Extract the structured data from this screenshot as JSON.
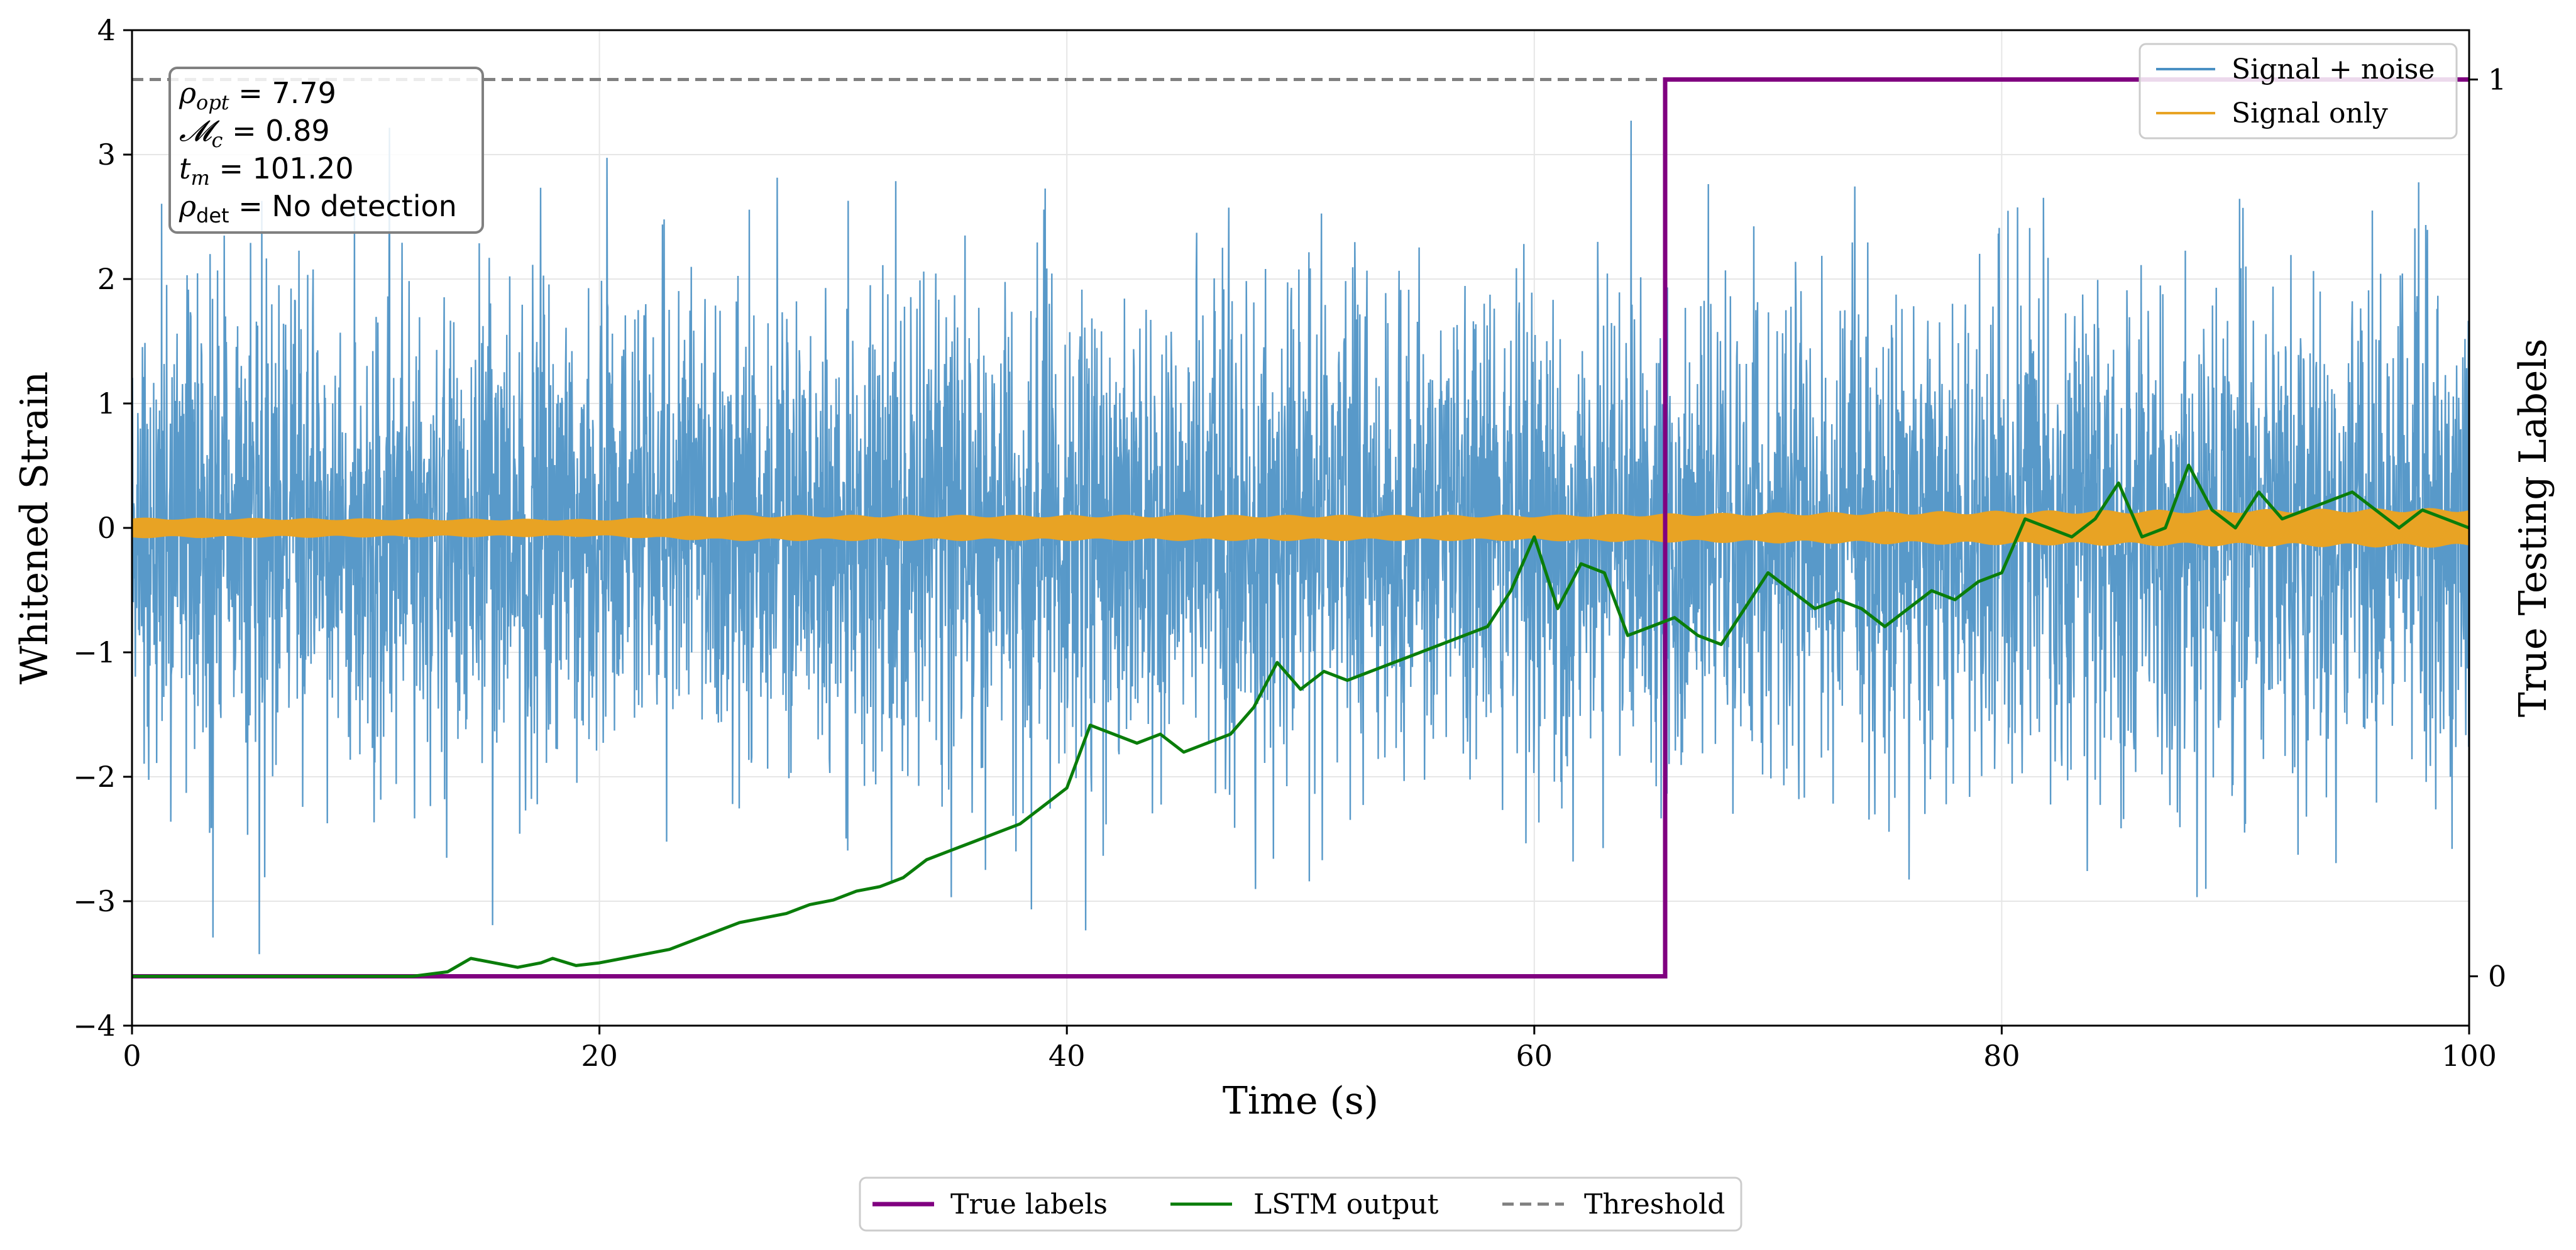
{
  "chart_data": {
    "type": "line",
    "xlabel": "Time (s)",
    "ylabel": "Whitened Strain",
    "y2label": "True Testing Labels",
    "xlim": [
      0,
      100
    ],
    "ylim": [
      -4,
      4
    ],
    "y2lim": [
      -0.055,
      1.055
    ],
    "x_ticks": [
      0,
      20,
      40,
      60,
      80,
      100
    ],
    "y_ticks": [
      -4,
      -3,
      -2,
      -1,
      0,
      1,
      2,
      3,
      4
    ],
    "y2_ticks": [
      0,
      1
    ],
    "grid": true,
    "strain_legend": {
      "position": "top-right",
      "entries": [
        {
          "label": "Signal + noise",
          "color": "#4a90c4"
        },
        {
          "label": "Signal only",
          "color": "#e8a324"
        }
      ]
    },
    "labels_legend": {
      "position": "bottom-center-outside",
      "entries": [
        {
          "label": "True labels",
          "color": "#800080",
          "style": "solid"
        },
        {
          "label": "LSTM output",
          "color": "#0a7d0a",
          "style": "solid"
        },
        {
          "label": "Threshold",
          "color": "#808080",
          "style": "dashed"
        }
      ]
    },
    "info_box": {
      "lines": [
        {
          "sym": "ρ",
          "sub": "opt",
          "rest": " = 7.79"
        },
        {
          "sym": "𝓜",
          "sub": "c",
          "rest": " = 0.89"
        },
        {
          "sym": "t",
          "sub": "m",
          "rest": " = 101.20"
        },
        {
          "sym": "ρ",
          "sub": "det",
          "rest": " = No detection"
        }
      ]
    },
    "series": [
      {
        "name": "Signal + noise",
        "axis": "left",
        "color": "#4a90c4",
        "description": "Gaussian-like whitened noise, typical amplitude about ±2, peaks reaching about ±3.5 over 0–100 s"
      },
      {
        "name": "Signal only",
        "axis": "left",
        "color": "#e8a324",
        "envelope": {
          "x": [
            0,
            20,
            25,
            40,
            60,
            65,
            80,
            100
          ],
          "amplitude": [
            0.07,
            0.06,
            0.09,
            0.09,
            0.09,
            0.1,
            0.12,
            0.14
          ]
        }
      },
      {
        "name": "True labels",
        "axis": "right",
        "color": "#800080",
        "x": [
          0,
          65.6,
          65.6,
          100
        ],
        "y": [
          0,
          0,
          1,
          1
        ]
      },
      {
        "name": "LSTM output",
        "axis": "right",
        "color": "#0a7d0a",
        "x": [
          0,
          12,
          13.5,
          14.5,
          15.5,
          16.5,
          17.5,
          18,
          19,
          20,
          21,
          22,
          23,
          24,
          25,
          26,
          27,
          28,
          29,
          30,
          31,
          32,
          33,
          34,
          35,
          36,
          37,
          38,
          39,
          40,
          41,
          42,
          43,
          44,
          45,
          46,
          47,
          48,
          49,
          50,
          51,
          52,
          53,
          54,
          55,
          56,
          57,
          58,
          59,
          60,
          61,
          62,
          63,
          64,
          65,
          66,
          67,
          68,
          69,
          70,
          71,
          72,
          73,
          74,
          75,
          76,
          77,
          78,
          79,
          80,
          81,
          82,
          83,
          84,
          85,
          86,
          87,
          88,
          89,
          90,
          91,
          92,
          93,
          94,
          95,
          96,
          97,
          98,
          99,
          100
        ],
        "y": [
          0,
          0,
          0.005,
          0.02,
          0.015,
          0.01,
          0.015,
          0.02,
          0.012,
          0.015,
          0.02,
          0.025,
          0.03,
          0.04,
          0.05,
          0.06,
          0.065,
          0.07,
          0.08,
          0.085,
          0.095,
          0.1,
          0.11,
          0.13,
          0.14,
          0.15,
          0.16,
          0.17,
          0.19,
          0.21,
          0.28,
          0.27,
          0.26,
          0.27,
          0.25,
          0.26,
          0.27,
          0.3,
          0.35,
          0.32,
          0.34,
          0.33,
          0.34,
          0.35,
          0.36,
          0.37,
          0.38,
          0.39,
          0.43,
          0.49,
          0.41,
          0.46,
          0.45,
          0.38,
          0.39,
          0.4,
          0.38,
          0.37,
          0.41,
          0.45,
          0.43,
          0.41,
          0.42,
          0.41,
          0.39,
          0.41,
          0.43,
          0.42,
          0.44,
          0.45,
          0.51,
          0.5,
          0.49,
          0.51,
          0.55,
          0.49,
          0.5,
          0.57,
          0.52,
          0.5,
          0.54,
          0.51,
          0.52,
          0.53,
          0.54,
          0.52,
          0.5,
          0.52,
          0.51,
          0.5
        ]
      },
      {
        "name": "Threshold",
        "axis": "right",
        "color": "#808080",
        "style": "dashed",
        "y": 1.0
      }
    ]
  }
}
